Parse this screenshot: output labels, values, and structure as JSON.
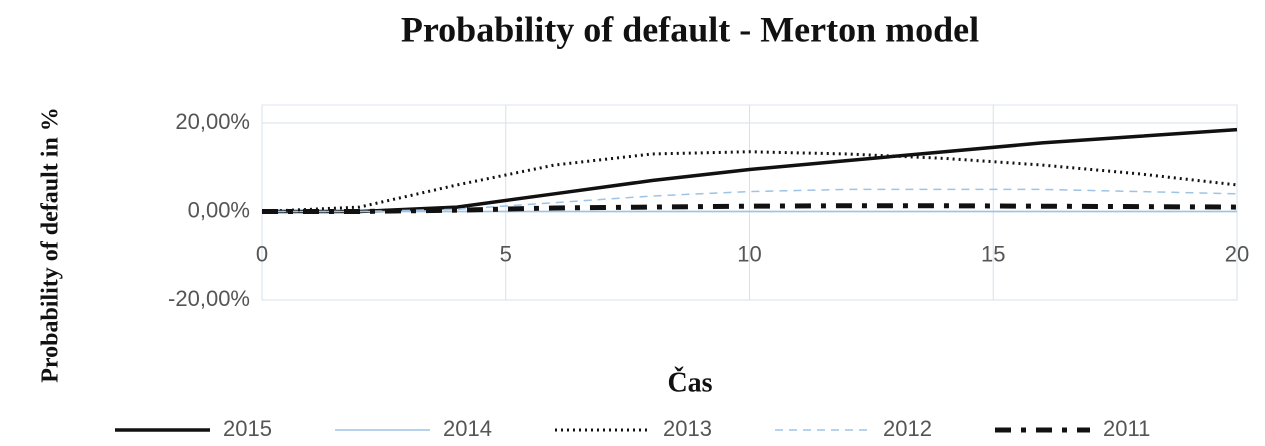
{
  "chart_data": {
    "type": "line",
    "title": "Probability  of default - Merton model",
    "x_label": "Čas",
    "y_label": "Probability  of default in %",
    "x": [
      0,
      2,
      4,
      6,
      8,
      10,
      12,
      14,
      16,
      18,
      20
    ],
    "series": [
      {
        "name": "2015",
        "color": "#111111",
        "line_style": "solid",
        "values": [
          0,
          0,
          1,
          4,
          7,
          9.5,
          11.5,
          13.5,
          15.5,
          17,
          18.5
        ]
      },
      {
        "name": "2014",
        "color": "#9dc3e6",
        "line_style": "thin",
        "values": [
          0,
          0,
          0,
          0,
          0,
          0,
          0,
          0,
          0,
          0,
          0
        ]
      },
      {
        "name": "2013",
        "color": "#111111",
        "line_style": "dotted",
        "values": [
          0,
          1,
          6,
          10.5,
          13,
          13.5,
          13,
          12,
          10.5,
          8.5,
          6
        ]
      },
      {
        "name": "2012",
        "color": "#9dc3e6",
        "line_style": "dashed",
        "values": [
          0,
          0,
          0.5,
          2,
          3.5,
          4.5,
          5,
          5,
          5,
          4.5,
          4
        ]
      },
      {
        "name": "2011",
        "color": "#111111",
        "line_style": "dashdot",
        "values": [
          0,
          0,
          0.3,
          0.8,
          1,
          1.2,
          1.3,
          1.3,
          1.2,
          1.1,
          1
        ]
      }
    ],
    "xlim": [
      0,
      20
    ],
    "xticks": [
      0,
      5,
      10,
      15,
      20
    ],
    "ylim": [
      -20,
      20
    ],
    "yticks": [
      {
        "value": -20,
        "label": "-20,00%"
      },
      {
        "value": 0,
        "label": "0,00%"
      },
      {
        "value": 20,
        "label": "20,00%"
      }
    ],
    "grid": true,
    "legend": "bottom"
  }
}
